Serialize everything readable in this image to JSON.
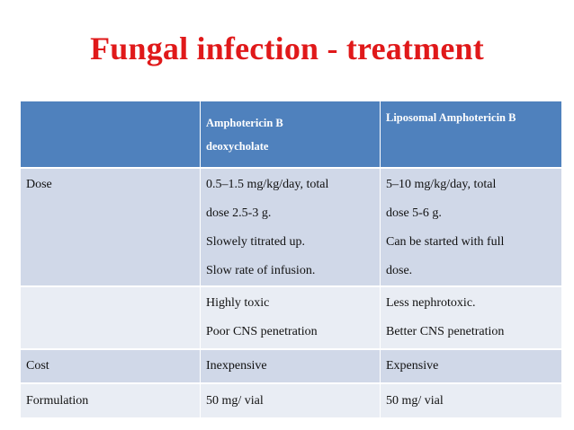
{
  "title": "Fungal infection - treatment",
  "table": {
    "header": {
      "col1": "",
      "col2": [
        "Amphotericin B",
        "deoxycholate"
      ],
      "col3": "Liposomal Amphotericin B"
    },
    "rows": [
      {
        "label": "Dose",
        "col2": [
          "0.5–1.5 mg/kg/day, total",
          "dose 2.5-3 g.",
          "Slowely titrated up.",
          "Slow rate of infusion."
        ],
        "col3": [
          "5–10 mg/kg/day, total",
          "dose 5-6 g.",
          "Can be started with full",
          "dose."
        ]
      },
      {
        "label": "",
        "col2": [
          "Highly toxic",
          "Poor CNS penetration"
        ],
        "col3": [
          "Less nephrotoxic.",
          "Better CNS penetration"
        ]
      },
      {
        "label": "Cost",
        "col2": "Inexpensive",
        "col3": "Expensive"
      },
      {
        "label": "Formulation",
        "col2": "50 mg/ vial",
        "col3": "50 mg/ vial"
      }
    ]
  },
  "colors": {
    "title": "#e0191a",
    "header_bg": "#4f81bd",
    "row_dark": "#d0d8e8",
    "row_light": "#e9edf4"
  }
}
